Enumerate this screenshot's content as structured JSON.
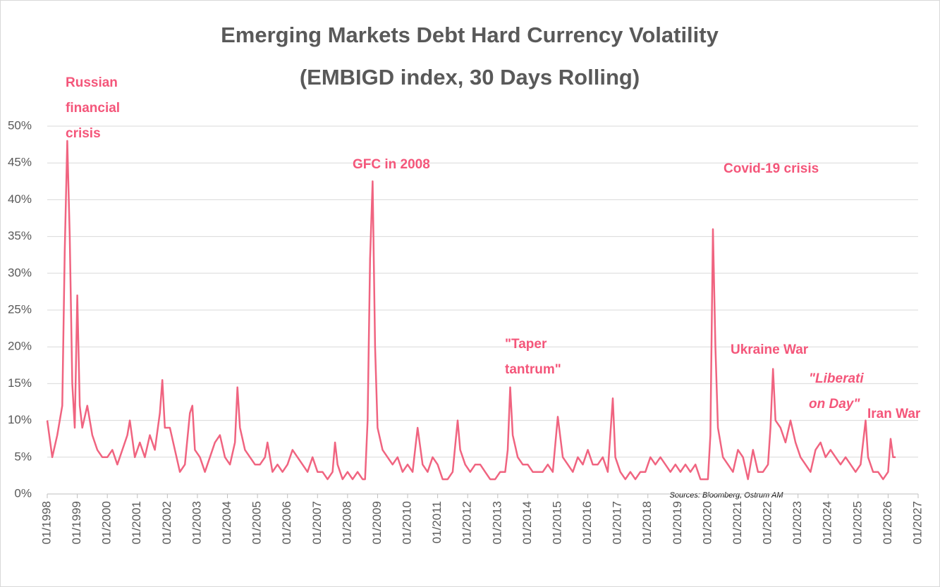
{
  "chart_data": {
    "type": "line",
    "title": [
      "Emerging Markets Debt Hard Currency Volatility",
      "(EMBIGD index, 30 Days Rolling)"
    ],
    "source": "Sources: Bloomberg, Ostrum AM",
    "color": "#f06480",
    "annotation_color": "#f4567a",
    "grid": true,
    "annotations": [
      [
        "Russian",
        "financial",
        "crisis"
      ],
      [
        "GFC in 2008"
      ],
      [
        "Covid-19 crisis"
      ],
      [
        "\"Taper",
        "tantrum\""
      ],
      [
        "Ukraine War"
      ],
      [
        "\"Liberati",
        "on Day\""
      ],
      [
        "Iran War"
      ]
    ],
    "xlim": [
      "01/1998",
      "01/2027"
    ],
    "xticks": [
      "01/1998",
      "01/1999",
      "01/2000",
      "01/2001",
      "01/2002",
      "01/2003",
      "01/2004",
      "01/2005",
      "01/2006",
      "01/2007",
      "01/2008",
      "01/2009",
      "01/2010",
      "01/2011",
      "01/2012",
      "01/2013",
      "01/2014",
      "01/2015",
      "01/2016",
      "01/2017",
      "01/2018",
      "01/2019",
      "01/2020",
      "01/2021",
      "01/2022",
      "01/2023",
      "01/2024",
      "01/2025",
      "01/2026",
      "01/2027"
    ],
    "ylim": [
      0,
      50
    ],
    "yticks": [
      {
        "value": 0,
        "label": "0%"
      },
      {
        "value": 5,
        "label": "5%"
      },
      {
        "value": 10,
        "label": "10%"
      },
      {
        "value": 15,
        "label": "15%"
      },
      {
        "value": 20,
        "label": "20%"
      },
      {
        "value": 25,
        "label": "25%"
      },
      {
        "value": 30,
        "label": "30%"
      },
      {
        "value": 35,
        "label": "35%"
      },
      {
        "value": 40,
        "label": "40%"
      },
      {
        "value": 45,
        "label": "45%"
      },
      {
        "value": 50,
        "label": "50%"
      }
    ],
    "x": [
      "01/1998",
      "03/1998",
      "05/1998",
      "07/1998",
      "08/1998",
      "09/1998",
      "10/1998",
      "11/1998",
      "12/1998",
      "01/1999",
      "02/1999",
      "03/1999",
      "05/1999",
      "07/1999",
      "09/1999",
      "11/1999",
      "01/2000",
      "03/2000",
      "05/2000",
      "07/2000",
      "09/2000",
      "10/2000",
      "12/2000",
      "02/2001",
      "04/2001",
      "06/2001",
      "08/2001",
      "10/2001",
      "11/2001",
      "12/2001",
      "02/2002",
      "04/2002",
      "06/2002",
      "08/2002",
      "10/2002",
      "11/2002",
      "12/2002",
      "02/2003",
      "04/2003",
      "06/2003",
      "08/2003",
      "10/2003",
      "12/2003",
      "02/2004",
      "04/2004",
      "05/2004",
      "06/2004",
      "08/2004",
      "10/2004",
      "12/2004",
      "02/2005",
      "04/2005",
      "05/2005",
      "07/2005",
      "09/2005",
      "11/2005",
      "01/2006",
      "03/2006",
      "05/2006",
      "07/2006",
      "09/2006",
      "11/2006",
      "01/2007",
      "03/2007",
      "05/2007",
      "07/2007",
      "08/2007",
      "09/2007",
      "11/2007",
      "01/2008",
      "03/2008",
      "05/2008",
      "07/2008",
      "08/2008",
      "09/2008",
      "10/2008",
      "11/2008",
      "12/2008",
      "01/2009",
      "03/2009",
      "05/2009",
      "07/2009",
      "09/2009",
      "11/2009",
      "01/2010",
      "03/2010",
      "05/2010",
      "07/2010",
      "09/2010",
      "11/2010",
      "01/2011",
      "03/2011",
      "05/2011",
      "07/2011",
      "09/2011",
      "10/2011",
      "12/2011",
      "02/2012",
      "04/2012",
      "06/2012",
      "08/2012",
      "10/2012",
      "12/2012",
      "02/2013",
      "04/2013",
      "05/2013",
      "06/2013",
      "07/2013",
      "09/2013",
      "11/2013",
      "01/2014",
      "03/2014",
      "05/2014",
      "07/2014",
      "09/2014",
      "11/2014",
      "01/2015",
      "03/2015",
      "05/2015",
      "07/2015",
      "09/2015",
      "11/2015",
      "01/2016",
      "03/2016",
      "05/2016",
      "07/2016",
      "09/2016",
      "11/2016",
      "12/2016",
      "02/2017",
      "04/2017",
      "06/2017",
      "08/2017",
      "10/2017",
      "12/2017",
      "02/2018",
      "04/2018",
      "06/2018",
      "08/2018",
      "10/2018",
      "12/2018",
      "02/2019",
      "04/2019",
      "06/2019",
      "08/2019",
      "10/2019",
      "12/2019",
      "01/2020",
      "02/2020",
      "03/2020",
      "04/2020",
      "05/2020",
      "07/2020",
      "09/2020",
      "11/2020",
      "01/2021",
      "03/2021",
      "05/2021",
      "07/2021",
      "09/2021",
      "11/2021",
      "01/2022",
      "02/2022",
      "03/2022",
      "04/2022",
      "06/2022",
      "08/2022",
      "10/2022",
      "12/2022",
      "02/2023",
      "04/2023",
      "06/2023",
      "08/2023",
      "10/2023",
      "12/2023",
      "02/2024",
      "04/2024",
      "06/2024",
      "08/2024",
      "10/2024",
      "12/2024",
      "02/2025",
      "04/2025",
      "05/2025",
      "07/2025",
      "09/2025",
      "11/2025",
      "01/2026",
      "02/2026",
      "03/2026",
      "04/2026"
    ],
    "values": [
      10,
      5,
      8,
      12,
      33,
      48,
      35,
      15,
      9,
      27,
      12,
      9,
      12,
      8,
      6,
      5,
      5,
      6,
      4,
      6,
      8,
      10,
      5,
      7,
      5,
      8,
      6,
      11,
      15.5,
      9,
      9,
      6,
      3,
      4,
      11,
      12,
      6,
      5,
      3,
      5,
      7,
      8,
      5,
      4,
      7,
      14.5,
      9,
      6,
      5,
      4,
      4,
      5,
      7,
      3,
      4,
      3,
      4,
      6,
      5,
      4,
      3,
      5,
      3,
      3,
      2,
      3,
      7,
      4,
      2,
      3,
      2,
      3,
      2,
      2,
      10,
      32,
      42.5,
      20,
      9,
      6,
      5,
      4,
      5,
      3,
      4,
      3,
      9,
      4,
      3,
      5,
      4,
      2,
      2,
      3,
      10,
      6,
      4,
      3,
      4,
      4,
      3,
      2,
      2,
      3,
      3,
      6,
      14.5,
      8,
      5,
      4,
      4,
      3,
      3,
      3,
      4,
      3,
      10.5,
      5,
      4,
      3,
      5,
      4,
      6,
      4,
      4,
      5,
      3,
      13,
      5,
      3,
      2,
      3,
      2,
      3,
      3,
      5,
      4,
      5,
      4,
      3,
      4,
      3,
      4,
      3,
      4,
      2,
      2,
      2,
      8,
      36,
      20,
      9,
      5,
      4,
      3,
      6,
      5,
      2,
      6,
      3,
      3,
      4,
      9,
      17,
      10,
      9,
      7,
      10,
      7,
      5,
      4,
      3,
      6,
      7,
      5,
      6,
      5,
      4,
      5,
      4,
      3,
      4,
      10,
      5,
      3,
      3,
      2,
      3,
      7.5,
      5,
      5
    ]
  }
}
